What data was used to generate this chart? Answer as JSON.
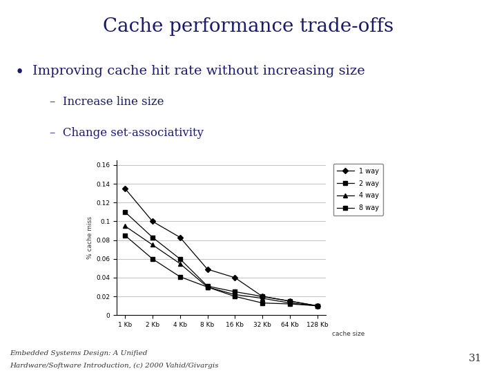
{
  "title": "Cache performance trade-offs",
  "bullet_main": "Improving cache hit rate without increasing size",
  "bullet_sub1": "Increase line size",
  "bullet_sub2": "Change set-associativity",
  "xlabel": "cache size",
  "ylabel": "% cache miss",
  "x_labels": [
    "1 Kb",
    "2 Kb",
    "4 Kb",
    "8 Kb",
    "16 Kb",
    "32 Kb",
    "64 Kb",
    "128 Kb"
  ],
  "y_ticks": [
    0,
    0.02,
    0.04,
    0.06,
    0.08,
    0.1,
    0.12,
    0.14,
    0.16
  ],
  "series": {
    "1 way": [
      0.135,
      0.1,
      0.083,
      0.049,
      0.04,
      0.02,
      0.015,
      0.01
    ],
    "2 way": [
      0.11,
      0.083,
      0.06,
      0.031,
      0.025,
      0.02,
      0.015,
      0.01
    ],
    "4 way": [
      0.095,
      0.075,
      0.055,
      0.03,
      0.022,
      0.018,
      0.013,
      0.01
    ],
    "8 way": [
      0.085,
      0.06,
      0.041,
      0.03,
      0.02,
      0.013,
      0.012,
      0.01
    ]
  },
  "markers": {
    "1 way": "D",
    "2 way": "s",
    "4 way": "^",
    "8 way": "s"
  },
  "title_color": "#1a1a6e",
  "bar_color": "#3355cc",
  "bg_color": "#ffffff",
  "text_color": "#1a1a6e",
  "footer_line1": "Embedded Systems Design: A Unified",
  "footer_line2": "Hardware/Software Introduction, (c) 2000 Vahid/Givargis",
  "page_number": "31",
  "title_fontsize": 20,
  "bullet_fontsize": 14,
  "subbullet_fontsize": 12,
  "footer_fontsize": 7.5
}
